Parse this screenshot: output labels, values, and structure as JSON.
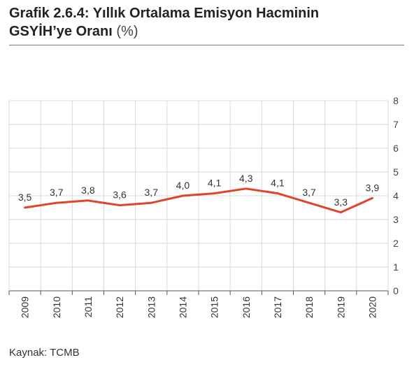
{
  "header": {
    "title_bold_line1": "Grafik 2.6.4: Yıllık Ortalama Emisyon Hacminin",
    "title_bold_line2": "GSYİH’ye Oranı",
    "title_unit": "(%)"
  },
  "source": "Kaynak: TCMB",
  "colors": {
    "line": "#e0452c",
    "grid": "#d9d9d9",
    "axis": "#555555"
  },
  "chart_data": {
    "type": "line",
    "title": "Grafik 2.6.4: Yıllık Ortalama Emisyon Hacminin GSYİH’ye Oranı (%)",
    "categories": [
      "2009",
      "2010",
      "2011",
      "2012",
      "2013",
      "2014",
      "2015",
      "2016",
      "2017",
      "2018",
      "2019",
      "2020"
    ],
    "series": [
      {
        "values": [
          3.5,
          3.7,
          3.8,
          3.6,
          3.7,
          4.0,
          4.1,
          4.3,
          4.1,
          3.7,
          3.3,
          3.9
        ],
        "labels": [
          "3,5",
          "3,7",
          "3,8",
          "3,6",
          "3,7",
          "4,0",
          "4,1",
          "4,3",
          "4,1",
          "3,7",
          "3,3",
          "3,9"
        ]
      }
    ],
    "ylim": [
      0,
      8
    ],
    "yticks": [
      "0",
      "1",
      "2",
      "3",
      "4",
      "5",
      "6",
      "7",
      "8"
    ],
    "y_axis_side": "right",
    "grid": true,
    "legend": "none"
  }
}
